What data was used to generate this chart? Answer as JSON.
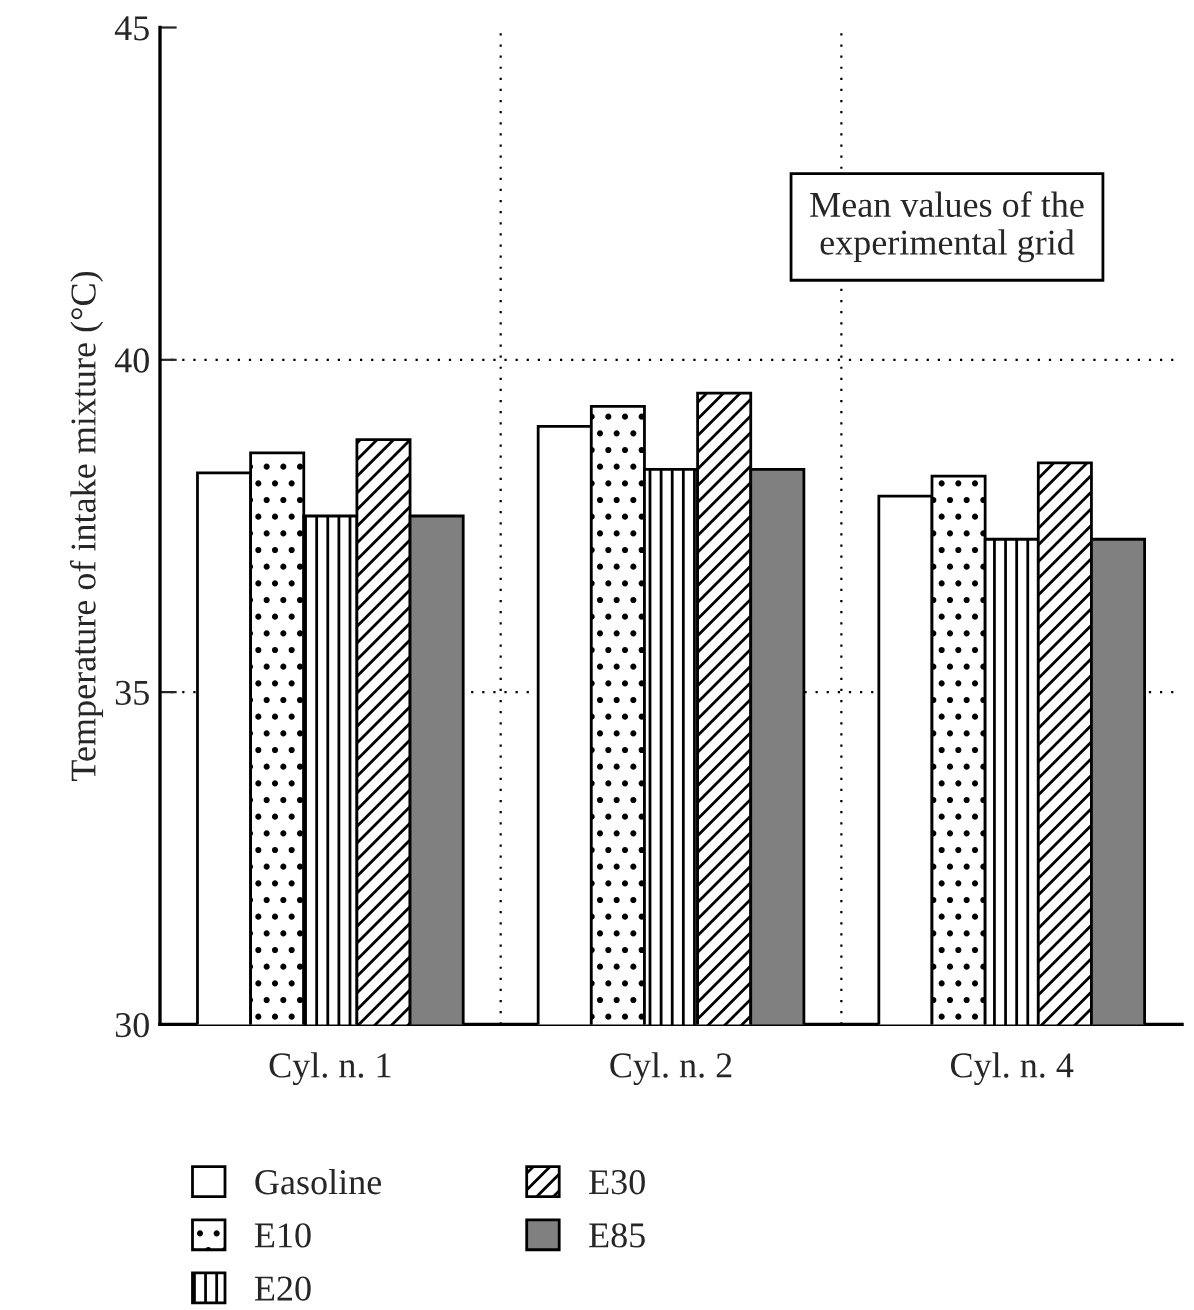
{
  "chart_data": {
    "type": "bar",
    "ylabel": "Temperature of intake mixture (°C)",
    "categories": [
      "Cyl. n. 1",
      "Cyl. n. 2",
      "Cyl. n. 4"
    ],
    "series": [
      {
        "name": "Gasoline",
        "color": "#ffffff",
        "values": [
          38.3,
          39.0,
          37.95
        ]
      },
      {
        "name": "E10",
        "color": "#000000",
        "values": [
          38.6,
          39.3,
          38.25
        ]
      },
      {
        "name": "E20",
        "color": "#000000",
        "values": [
          37.65,
          38.35,
          37.3
        ]
      },
      {
        "name": "E30",
        "color": "#000000",
        "values": [
          38.8,
          39.5,
          38.45
        ]
      },
      {
        "name": "E85",
        "color": "#808080",
        "values": [
          37.65,
          38.35,
          37.3
        ]
      }
    ],
    "ylim": [
      30,
      45
    ],
    "yticks": [
      30,
      35,
      40,
      45
    ],
    "grid": true,
    "legend": "bottom",
    "annotations": [
      "Mean values of the\nexperimental grid"
    ]
  }
}
